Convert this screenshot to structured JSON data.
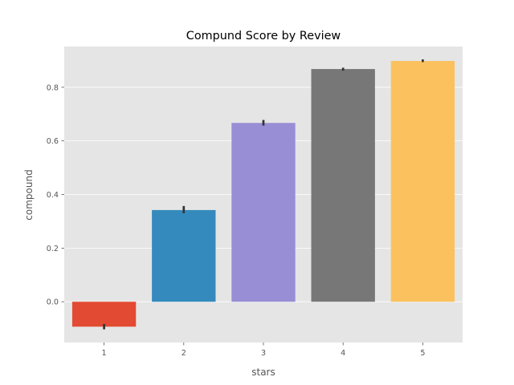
{
  "chart_data": {
    "type": "bar",
    "title": "Compund Score by Review",
    "xlabel": "stars",
    "ylabel": "compound",
    "categories": [
      "1",
      "2",
      "3",
      "4",
      "5"
    ],
    "values": [
      -0.093,
      0.342,
      0.667,
      0.868,
      0.898
    ],
    "error_bars": [
      [
        -0.103,
        -0.083
      ],
      [
        0.33,
        0.357
      ],
      [
        0.657,
        0.678
      ],
      [
        0.862,
        0.873
      ],
      [
        0.894,
        0.904
      ]
    ],
    "ylim": [
      -0.152,
      0.952
    ],
    "yticks": [
      0.0,
      0.2,
      0.4,
      0.6,
      0.8
    ],
    "ytick_labels": [
      "0.0",
      "0.2",
      "0.4",
      "0.6",
      "0.8"
    ],
    "colors": [
      "#E24A33",
      "#348ABD",
      "#988ED5",
      "#777777",
      "#FBC15E"
    ],
    "background": "#E5E5E5",
    "grid": true,
    "grid_color": "#FFFFFF",
    "error_color": "#333333"
  }
}
